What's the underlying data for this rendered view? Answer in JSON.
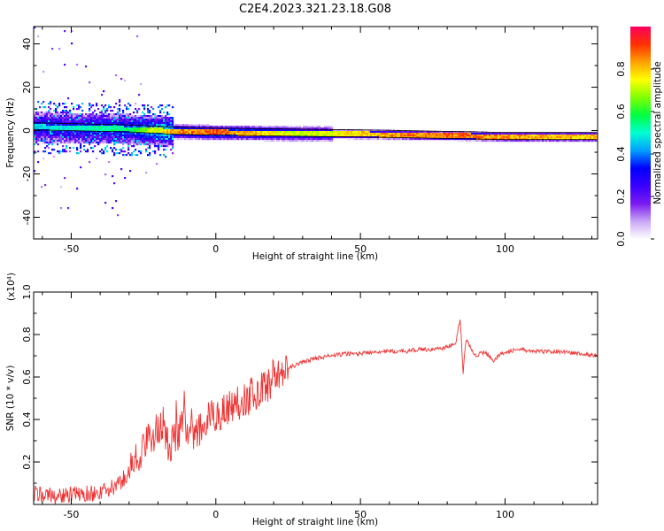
{
  "title": "C2E4.2023.321.23.18.G08",
  "chart_data": [
    {
      "type": "heatmap",
      "xlabel": "Height of straight line (km)",
      "ylabel": "Frequency (Hz)",
      "xlim": [
        -63,
        132
      ],
      "ylim": [
        -50,
        48
      ],
      "xticks": [
        -50,
        0,
        50,
        100
      ],
      "yticks": [
        -40,
        -20,
        0,
        20,
        40
      ],
      "colorbar": {
        "label": "Normalized spectral amplitude",
        "range": [
          0.0,
          1.0
        ],
        "ticks": [
          0.0,
          0.2,
          0.4,
          0.6,
          0.8
        ],
        "tick_labels": [
          "0.0",
          "0.2",
          "0.4",
          "0.6",
          "0.8"
        ],
        "colors": [
          "#ffffff",
          "#c9a6f5",
          "#7a1af0",
          "#3a00ff",
          "#0000ff",
          "#00a0ff",
          "#00ffd0",
          "#00ff40",
          "#80ff00",
          "#ffff00",
          "#ffa000",
          "#ff3000",
          "#ff0060"
        ]
      },
      "signal_line": {
        "description_points_x": [
          -63,
          -30,
          -15,
          0,
          30,
          60,
          80,
          100,
          132
        ],
        "frequency_hz": [
          2,
          1,
          0,
          -0.5,
          -1,
          -1.5,
          -2,
          -2.5,
          -2.5
        ],
        "peak_amplitude": [
          0.5,
          0.6,
          0.9,
          0.95,
          0.75,
          0.9,
          0.95,
          0.9,
          0.85
        ]
      }
    },
    {
      "type": "line",
      "xlabel": "Height of straight line (km)",
      "ylabel": "SNR (10 * v/v)",
      "y_multiplier": "(x10⁴)",
      "xlim": [
        -63,
        132
      ],
      "ylim": [
        0.0,
        1.0
      ],
      "xticks": [
        -50,
        0,
        50,
        100
      ],
      "yticks": [
        0.2,
        0.4,
        0.6,
        0.8,
        1.0
      ],
      "ytick_labels": [
        "0.2",
        "0.4",
        "0.6",
        "0.8",
        "1.0"
      ],
      "color": "#ee3333",
      "series": [
        {
          "x": [
            -63,
            -55,
            -45,
            -38,
            -33,
            -28,
            -25,
            -22,
            -19,
            -16,
            -13,
            -10,
            -7,
            -4,
            0,
            5,
            10,
            15,
            20,
            25,
            30,
            35,
            40,
            45,
            50,
            55,
            60,
            65,
            70,
            75,
            80,
            83,
            84.5,
            85.5,
            86.5,
            88,
            90,
            93,
            96,
            100,
            105,
            110,
            115,
            120,
            125,
            132
          ],
          "values": [
            0.05,
            0.04,
            0.05,
            0.06,
            0.1,
            0.2,
            0.26,
            0.33,
            0.36,
            0.28,
            0.34,
            0.38,
            0.31,
            0.38,
            0.42,
            0.46,
            0.5,
            0.53,
            0.6,
            0.64,
            0.67,
            0.69,
            0.7,
            0.71,
            0.71,
            0.72,
            0.72,
            0.72,
            0.73,
            0.73,
            0.74,
            0.76,
            0.88,
            0.62,
            0.78,
            0.74,
            0.7,
            0.72,
            0.68,
            0.72,
            0.73,
            0.72,
            0.72,
            0.72,
            0.71,
            0.7
          ]
        }
      ]
    }
  ]
}
